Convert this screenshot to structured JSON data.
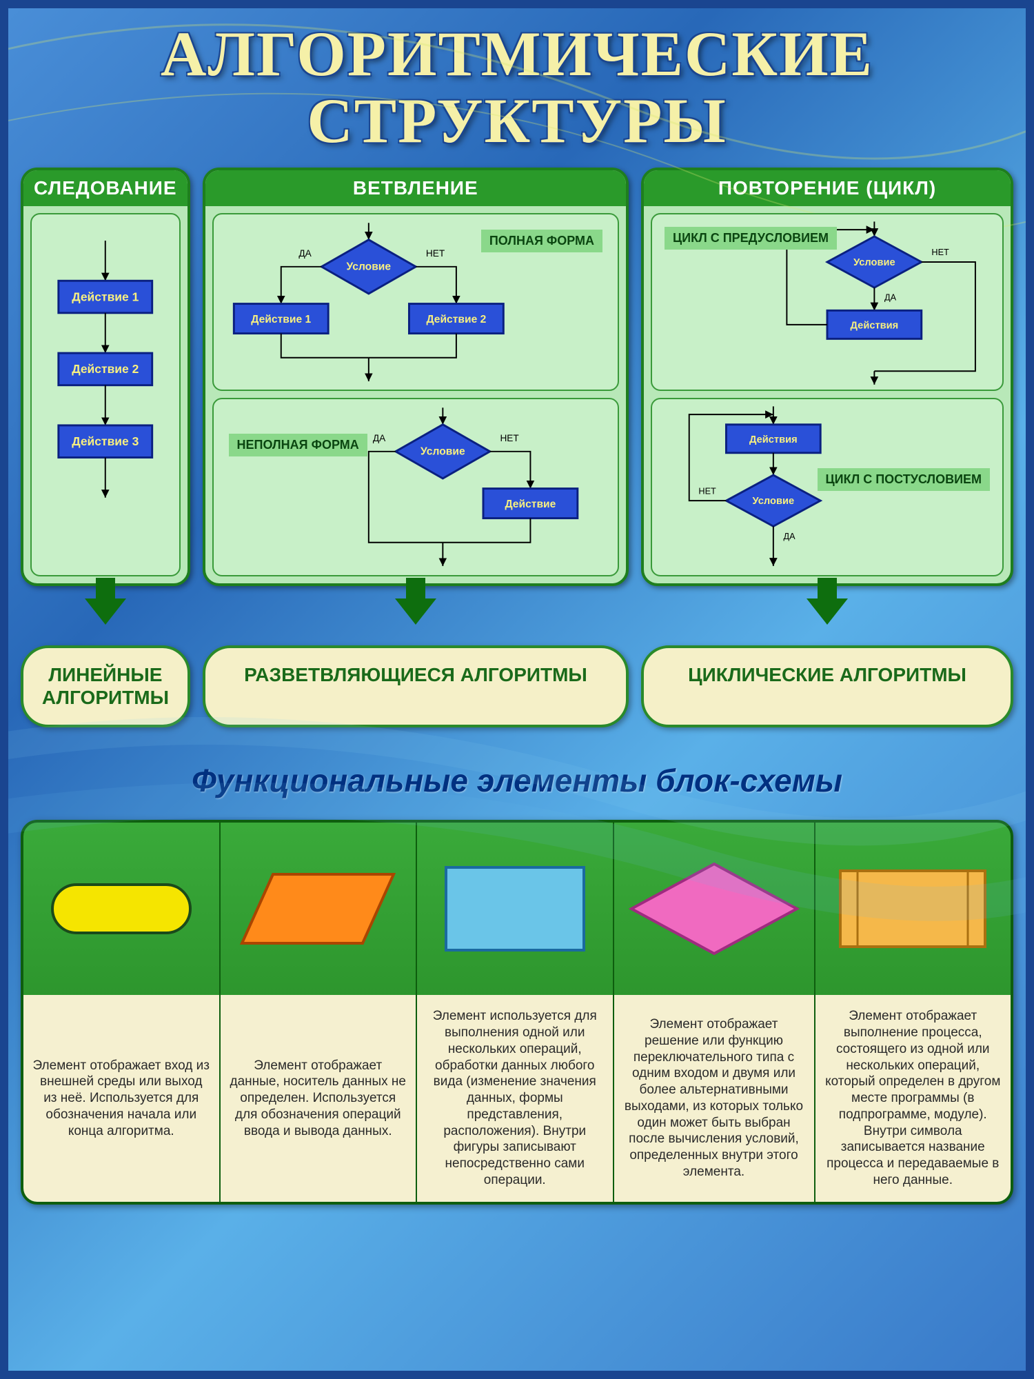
{
  "title": "АЛГОРИТМИЧЕСКИЕ СТРУКТУРЫ",
  "panels": {
    "seq": {
      "header": "СЛЕДОВАНИЕ"
    },
    "branch": {
      "header": "ВЕТВЛЕНИЕ",
      "tag_full": "ПОЛНАЯ ФОРМА",
      "tag_short": "НЕПОЛНАЯ ФОРМА"
    },
    "loop": {
      "header": "ПОВТОРЕНИЕ (ЦИКЛ)",
      "tag_pre": "ЦИКЛ С ПРЕДУСЛОВИЕМ",
      "tag_post": "ЦИКЛ С ПОСТУСЛОВИЕМ"
    }
  },
  "flowchart_labels": {
    "condition": "Условие",
    "action": "Действие",
    "action1": "Действие 1",
    "action2": "Действие 2",
    "action3": "Действие 3",
    "actions": "Действия",
    "yes": "ДА",
    "no": "НЕТ"
  },
  "algo_labels": {
    "linear": "ЛИНЕЙНЫЕ АЛГОРИТМЫ",
    "branching": "РАЗВЕТВЛЯЮЩИЕСЯ АЛГОРИТМЫ",
    "cyclic": "ЦИКЛИЧЕСКИЕ АЛГОРИТМЫ"
  },
  "section2_title": "Функциональные элементы блок-схемы",
  "elements": [
    {
      "shape": "terminator",
      "fill": "#f5e500",
      "stroke": "#1a4a1a",
      "desc": "Элемент отображает вход из внешней среды или выход из неё. Используется для обозначения начала или конца алгоритма."
    },
    {
      "shape": "parallelogram",
      "fill": "#ff8a1a",
      "stroke": "#aa4500",
      "desc": "Элемент отображает данные, носитель данных не определен. Используется для обозначения операций ввода и вывода данных."
    },
    {
      "shape": "rectangle",
      "fill": "#6ac5e8",
      "stroke": "#1a6aa0",
      "desc": "Элемент используется для выполнения одной или нескольких операций, обработки данных любого вида (изменение значения данных, формы представления, расположения). Внутри фигуры записывают непосредственно сами операции."
    },
    {
      "shape": "diamond",
      "fill": "#f06ac0",
      "stroke": "#a02a80",
      "desc": "Элемент отображает решение или функцию переключательного типа с одним входом и двумя или более альтернативными выходами, из которых только один может быть выбран после вычисления условий, определенных внутри этого элемента."
    },
    {
      "shape": "subroutine",
      "fill": "#f5b84a",
      "stroke": "#aa7010",
      "desc": "Элемент отображает выполнение процесса, состоящего из одной или нескольких операций, который определен в другом месте программы (в подпрограмме, модуле). Внутри символа записывается название процесса и передаваемые в него данные."
    }
  ],
  "colors": {
    "action_fill": "#2a50d8",
    "action_stroke": "#0a2080",
    "diamond_fill": "#2a50d8",
    "diamond_stroke": "#0a2080",
    "text_yellow": "#f8f080",
    "line": "#000000"
  }
}
